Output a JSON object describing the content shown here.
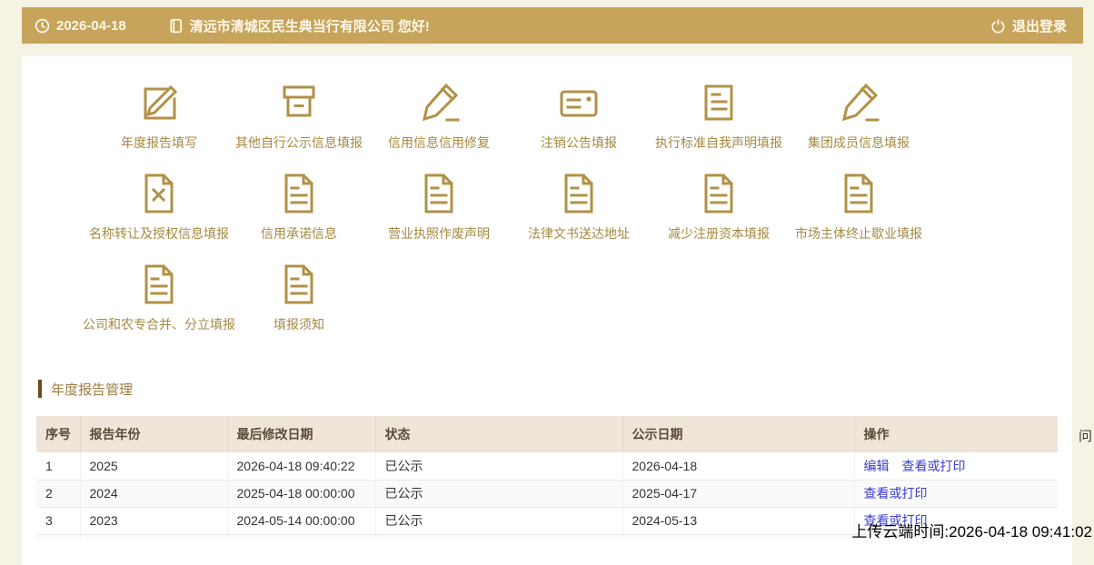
{
  "topbar": {
    "date": "2026-04-18",
    "company_greeting": "清远市清城区民生典当行有限公司 您好!",
    "logout_label": "退出登录",
    "icons": [
      "clock-icon",
      "company-icon",
      "power-icon"
    ]
  },
  "colors": {
    "topbar_bg": "#c7a45b",
    "page_bg": "#f6f3e5",
    "icon_gold": "#b19147",
    "section_bar": "#6b4b1d",
    "table_header_bg": "#efe5d8",
    "link_blue": "#3c3cce"
  },
  "menu": {
    "items": [
      {
        "label": "年度报告填写",
        "icon": "edit-square"
      },
      {
        "label": "其他自行公示信息填报",
        "icon": "archive-box"
      },
      {
        "label": "信用信息信用修复",
        "icon": "pencil"
      },
      {
        "label": "注销公告填报",
        "icon": "card-lines"
      },
      {
        "label": "执行标准自我声明填报",
        "icon": "doc-lines"
      },
      {
        "label": "集团成员信息填报",
        "icon": "pencil"
      },
      {
        "label": "名称转让及授权信息填报",
        "icon": "file-x"
      },
      {
        "label": "信用承诺信息",
        "icon": "file-lines"
      },
      {
        "label": "营业执照作废声明",
        "icon": "file-lines"
      },
      {
        "label": "法律文书送达地址",
        "icon": "file-lines"
      },
      {
        "label": "减少注册资本填报",
        "icon": "file-lines"
      },
      {
        "label": "市场主体终止歇业填报",
        "icon": "file-lines"
      },
      {
        "label": "公司和农专合并、分立填报",
        "icon": "file-lines"
      },
      {
        "label": "填报须知",
        "icon": "file-lines"
      }
    ]
  },
  "section": {
    "title": "年度报告管理"
  },
  "table": {
    "columns": [
      "序号",
      "报告年份",
      "最后修改日期",
      "状态",
      "公示日期",
      "操作"
    ],
    "rows": [
      {
        "index": "1",
        "year": "2025",
        "modified": "2026-04-18 09:40:22",
        "status": "已公示",
        "publish_date": "2026-04-18",
        "actions": [
          "编辑",
          "查看或打印"
        ]
      },
      {
        "index": "2",
        "year": "2024",
        "modified": "2025-04-18 00:00:00",
        "status": "已公示",
        "publish_date": "2025-04-17",
        "actions": [
          "查看或打印"
        ]
      },
      {
        "index": "3",
        "year": "2023",
        "modified": "2024-05-14 00:00:00",
        "status": "已公示",
        "publish_date": "2024-05-13",
        "actions": [
          "查看或打印"
        ]
      }
    ]
  },
  "overlay": {
    "upload_time": "上传云端时间:2026-04-18 09:41:02",
    "side_tab": "问"
  }
}
